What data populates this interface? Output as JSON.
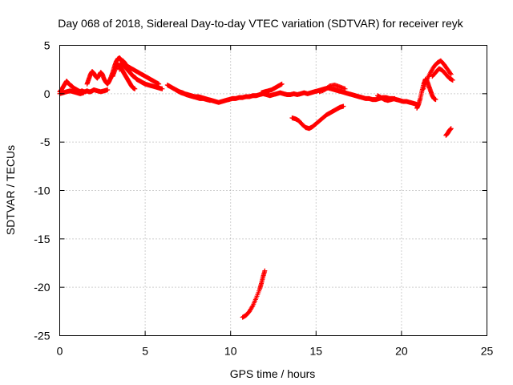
{
  "chart_data": {
    "type": "scatter",
    "title": "Day 068 of 2018, Sidereal Day-to-day VTEC variation (SDTVAR) for receiver reyk",
    "xlabel": "GPS time / hours",
    "ylabel": "SDTVAR / TECUs",
    "xlim": [
      0,
      25
    ],
    "ylim": [
      -25,
      5
    ],
    "xticks": [
      0,
      5,
      10,
      15,
      20,
      25
    ],
    "yticks": [
      5,
      0,
      -5,
      -10,
      -15,
      -20,
      -25
    ],
    "xtick_labels": [
      "0",
      "5",
      "10",
      "15",
      "20",
      "25"
    ],
    "ytick_labels": [
      "5",
      "0",
      "-5",
      "-10",
      "-15",
      "-20",
      "-25"
    ],
    "grid": true,
    "marker": "+",
    "color": "#ff0000",
    "series": [
      {
        "name": "reyk",
        "segments": [
          [
            [
              0.0,
              0.2
            ],
            [
              0.1,
              0.4
            ],
            [
              0.2,
              0.7
            ],
            [
              0.3,
              1.0
            ],
            [
              0.4,
              1.3
            ],
            [
              0.5,
              1.1
            ],
            [
              0.6,
              0.9
            ],
            [
              0.7,
              0.8
            ],
            [
              0.8,
              0.6
            ],
            [
              0.9,
              0.5
            ],
            [
              1.0,
              0.4
            ],
            [
              1.1,
              0.3
            ],
            [
              1.2,
              0.2
            ],
            [
              1.3,
              0.3
            ],
            [
              1.4,
              0.2
            ],
            [
              1.5,
              0.2
            ],
            [
              1.6,
              0.3
            ],
            [
              1.7,
              0.2
            ],
            [
              1.8,
              0.2
            ],
            [
              1.9,
              0.3
            ],
            [
              2.0,
              0.4
            ],
            [
              2.2,
              0.3
            ],
            [
              2.4,
              0.2
            ],
            [
              2.6,
              0.3
            ],
            [
              2.8,
              0.4
            ]
          ],
          [
            [
              0.0,
              0.0
            ],
            [
              0.2,
              0.1
            ],
            [
              0.4,
              0.2
            ],
            [
              0.6,
              0.3
            ],
            [
              0.8,
              0.2
            ],
            [
              1.0,
              0.1
            ],
            [
              1.2,
              0.0
            ],
            [
              1.4,
              0.1
            ]
          ],
          [
            [
              1.6,
              1.0
            ],
            [
              1.7,
              1.5
            ],
            [
              1.8,
              2.0
            ],
            [
              1.9,
              2.3
            ],
            [
              2.0,
              2.1
            ],
            [
              2.1,
              1.8
            ],
            [
              2.2,
              1.6
            ],
            [
              2.3,
              1.9
            ],
            [
              2.4,
              2.2
            ],
            [
              2.5,
              2.0
            ],
            [
              2.6,
              1.5
            ],
            [
              2.7,
              1.2
            ],
            [
              2.8,
              1.0
            ],
            [
              2.9,
              1.3
            ],
            [
              3.0,
              1.7
            ],
            [
              3.1,
              2.2
            ],
            [
              3.2,
              2.8
            ],
            [
              3.3,
              3.3
            ],
            [
              3.4,
              3.6
            ],
            [
              3.5,
              3.7
            ],
            [
              3.6,
              3.5
            ],
            [
              3.7,
              3.1
            ],
            [
              3.8,
              2.8
            ],
            [
              3.9,
              2.6
            ],
            [
              4.0,
              2.4
            ],
            [
              4.1,
              2.2
            ],
            [
              4.2,
              2.0
            ],
            [
              4.3,
              1.8
            ],
            [
              4.4,
              1.7
            ],
            [
              4.5,
              1.5
            ],
            [
              4.6,
              1.4
            ],
            [
              4.7,
              1.3
            ],
            [
              4.8,
              1.2
            ],
            [
              4.9,
              1.1
            ],
            [
              5.0,
              1.0
            ],
            [
              5.2,
              0.9
            ],
            [
              5.4,
              0.8
            ],
            [
              5.6,
              0.7
            ],
            [
              5.8,
              0.6
            ],
            [
              6.0,
              0.5
            ]
          ],
          [
            [
              3.1,
              1.8
            ],
            [
              3.2,
              2.3
            ],
            [
              3.3,
              2.8
            ],
            [
              3.4,
              3.0
            ],
            [
              3.5,
              2.9
            ],
            [
              3.6,
              2.6
            ],
            [
              3.7,
              2.3
            ],
            [
              3.8,
              2.0
            ],
            [
              3.9,
              1.7
            ],
            [
              4.0,
              1.4
            ],
            [
              4.1,
              1.1
            ],
            [
              4.2,
              0.8
            ],
            [
              4.3,
              0.6
            ],
            [
              4.4,
              0.5
            ]
          ],
          [
            [
              3.5,
              2.5
            ],
            [
              3.6,
              3.0
            ],
            [
              3.7,
              3.4
            ],
            [
              3.8,
              3.2
            ],
            [
              3.9,
              2.9
            ],
            [
              4.0,
              2.8
            ],
            [
              4.2,
              2.6
            ],
            [
              4.4,
              2.4
            ],
            [
              4.6,
              2.2
            ],
            [
              4.8,
              2.0
            ],
            [
              5.0,
              1.8
            ],
            [
              5.2,
              1.6
            ],
            [
              5.4,
              1.4
            ],
            [
              5.6,
              1.2
            ],
            [
              5.8,
              1.0
            ]
          ],
          [
            [
              6.3,
              0.9
            ],
            [
              6.5,
              0.7
            ],
            [
              6.7,
              0.5
            ],
            [
              6.9,
              0.3
            ],
            [
              7.1,
              0.1
            ],
            [
              7.3,
              0.0
            ],
            [
              7.5,
              -0.1
            ],
            [
              7.7,
              -0.2
            ],
            [
              7.9,
              -0.3
            ],
            [
              8.1,
              -0.3
            ],
            [
              8.3,
              -0.4
            ],
            [
              8.5,
              -0.5
            ],
            [
              8.7,
              -0.6
            ],
            [
              8.9,
              -0.7
            ],
            [
              9.1,
              -0.8
            ],
            [
              9.3,
              -0.9
            ],
            [
              9.5,
              -0.8
            ],
            [
              9.7,
              -0.7
            ],
            [
              9.9,
              -0.6
            ],
            [
              10.1,
              -0.5
            ],
            [
              10.3,
              -0.5
            ],
            [
              10.5,
              -0.4
            ],
            [
              10.7,
              -0.4
            ],
            [
              10.9,
              -0.3
            ],
            [
              11.1,
              -0.3
            ],
            [
              11.3,
              -0.2
            ],
            [
              11.5,
              -0.2
            ],
            [
              11.7,
              -0.1
            ],
            [
              11.9,
              0.0
            ],
            [
              12.1,
              -0.1
            ],
            [
              12.3,
              -0.2
            ],
            [
              12.5,
              -0.1
            ],
            [
              12.7,
              0.0
            ],
            [
              12.9,
              0.1
            ],
            [
              13.1,
              0.0
            ],
            [
              13.3,
              -0.1
            ],
            [
              13.5,
              -0.1
            ],
            [
              13.7,
              0.0
            ],
            [
              13.9,
              -0.1
            ],
            [
              14.1,
              0.0
            ],
            [
              14.3,
              0.1
            ],
            [
              14.5,
              0.0
            ],
            [
              14.7,
              0.1
            ],
            [
              14.9,
              0.2
            ],
            [
              15.1,
              0.3
            ],
            [
              15.3,
              0.4
            ],
            [
              15.5,
              0.5
            ],
            [
              15.7,
              0.6
            ],
            [
              15.9,
              0.5
            ],
            [
              16.1,
              0.4
            ],
            [
              16.3,
              0.3
            ],
            [
              16.5,
              0.2
            ],
            [
              16.7,
              0.1
            ],
            [
              16.9,
              0.0
            ],
            [
              17.1,
              -0.1
            ],
            [
              17.3,
              -0.2
            ],
            [
              17.5,
              -0.3
            ],
            [
              17.7,
              -0.4
            ],
            [
              17.9,
              -0.5
            ],
            [
              18.1,
              -0.5
            ],
            [
              18.3,
              -0.6
            ],
            [
              18.5,
              -0.6
            ],
            [
              18.7,
              -0.5
            ],
            [
              18.9,
              -0.4
            ],
            [
              19.1,
              -0.4
            ],
            [
              19.3,
              -0.5
            ],
            [
              19.5,
              -0.5
            ],
            [
              19.7,
              -0.6
            ],
            [
              19.9,
              -0.7
            ],
            [
              20.1,
              -0.8
            ],
            [
              20.3,
              -0.8
            ],
            [
              20.5,
              -0.9
            ],
            [
              20.7,
              -1.0
            ],
            [
              20.9,
              -1.1
            ]
          ],
          [
            [
              6.8,
              0.4
            ],
            [
              7.0,
              0.2
            ],
            [
              7.2,
              0.1
            ],
            [
              7.4,
              -0.1
            ],
            [
              7.6,
              -0.2
            ],
            [
              7.8,
              -0.3
            ],
            [
              8.0,
              -0.4
            ],
            [
              8.2,
              -0.5
            ],
            [
              8.4,
              -0.5
            ],
            [
              8.6,
              -0.6
            ],
            [
              8.8,
              -0.7
            ]
          ],
          [
            [
              11.8,
              0.1
            ],
            [
              12.0,
              0.2
            ],
            [
              12.2,
              0.3
            ],
            [
              12.4,
              0.4
            ],
            [
              12.6,
              0.6
            ],
            [
              12.8,
              0.8
            ],
            [
              13.0,
              1.0
            ]
          ],
          [
            [
              15.2,
              0.2
            ],
            [
              15.5,
              0.4
            ],
            [
              15.8,
              0.8
            ],
            [
              16.1,
              0.9
            ],
            [
              16.4,
              0.7
            ],
            [
              16.7,
              0.5
            ]
          ],
          [
            [
              18.6,
              -0.2
            ],
            [
              18.8,
              -0.4
            ],
            [
              19.0,
              -0.6
            ],
            [
              19.2,
              -0.7
            ],
            [
              19.4,
              -0.6
            ],
            [
              19.6,
              -0.5
            ]
          ],
          [
            [
              13.6,
              -2.5
            ],
            [
              13.8,
              -2.6
            ],
            [
              14.0,
              -2.8
            ],
            [
              14.2,
              -3.2
            ],
            [
              14.4,
              -3.5
            ],
            [
              14.6,
              -3.6
            ],
            [
              14.8,
              -3.4
            ],
            [
              15.0,
              -3.1
            ],
            [
              15.2,
              -2.8
            ],
            [
              15.4,
              -2.5
            ],
            [
              15.6,
              -2.2
            ],
            [
              15.8,
              -2.0
            ],
            [
              16.0,
              -1.8
            ],
            [
              16.2,
              -1.6
            ],
            [
              16.4,
              -1.4
            ],
            [
              16.6,
              -1.3
            ]
          ],
          [
            [
              20.9,
              -1.5
            ],
            [
              21.0,
              -1.1
            ],
            [
              21.1,
              -0.5
            ],
            [
              21.2,
              0.3
            ],
            [
              21.3,
              1.0
            ],
            [
              21.4,
              1.5
            ],
            [
              21.5,
              1.3
            ],
            [
              21.6,
              0.8
            ],
            [
              21.7,
              0.3
            ],
            [
              21.8,
              -0.2
            ],
            [
              21.9,
              -0.5
            ],
            [
              22.0,
              -0.6
            ]
          ],
          [
            [
              21.3,
              0.5
            ],
            [
              21.5,
              1.5
            ],
            [
              21.7,
              2.2
            ],
            [
              21.9,
              2.8
            ],
            [
              22.1,
              3.2
            ],
            [
              22.3,
              3.4
            ],
            [
              22.5,
              3.0
            ],
            [
              22.7,
              2.5
            ],
            [
              22.9,
              2.0
            ]
          ],
          [
            [
              21.8,
              1.8
            ],
            [
              22.0,
              2.2
            ],
            [
              22.2,
              2.6
            ],
            [
              22.4,
              2.4
            ],
            [
              22.6,
              2.0
            ],
            [
              22.8,
              1.6
            ],
            [
              23.0,
              1.4
            ]
          ],
          [
            [
              22.6,
              -4.3
            ],
            [
              22.7,
              -4.1
            ],
            [
              22.8,
              -3.8
            ],
            [
              22.9,
              -3.6
            ]
          ],
          [
            [
              10.7,
              -23.1
            ],
            [
              10.9,
              -22.9
            ],
            [
              11.1,
              -22.5
            ],
            [
              11.3,
              -21.9
            ],
            [
              11.5,
              -21.1
            ],
            [
              11.7,
              -20.2
            ],
            [
              11.8,
              -19.6
            ],
            [
              11.9,
              -18.9
            ],
            [
              12.0,
              -18.3
            ]
          ]
        ]
      }
    ]
  }
}
